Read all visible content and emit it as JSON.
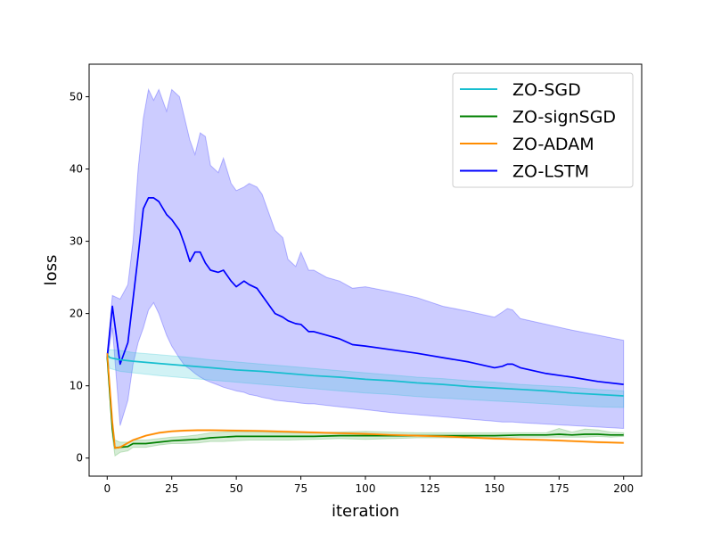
{
  "chart_data": {
    "type": "line",
    "title": "",
    "xlabel": "iteration",
    "ylabel": "loss",
    "xlim": [
      -7,
      207
    ],
    "ylim": [
      -2.5,
      54.5
    ],
    "xticks": [
      0,
      25,
      50,
      75,
      100,
      125,
      150,
      175,
      200
    ],
    "yticks": [
      0,
      10,
      20,
      30,
      40,
      50
    ],
    "grid": false,
    "legend": {
      "position": "top-right",
      "entries": [
        "ZO-SGD",
        "ZO-signSGD",
        "ZO-ADAM",
        "ZO-LSTM"
      ]
    },
    "series": [
      {
        "name": "ZO-SGD",
        "color": "#17becf",
        "band_color": "#17becf",
        "x": [
          0,
          1,
          5,
          10,
          20,
          30,
          40,
          50,
          60,
          70,
          80,
          90,
          100,
          110,
          120,
          130,
          140,
          150,
          160,
          170,
          180,
          190,
          200
        ],
        "values": [
          14.3,
          13.9,
          13.6,
          13.4,
          13.1,
          12.8,
          12.5,
          12.2,
          12.0,
          11.7,
          11.4,
          11.2,
          10.9,
          10.7,
          10.4,
          10.2,
          9.9,
          9.7,
          9.5,
          9.3,
          9.0,
          8.8,
          8.6
        ],
        "lower": [
          14.0,
          12.4,
          12.0,
          11.8,
          11.4,
          11.1,
          10.8,
          10.5,
          10.2,
          9.9,
          9.6,
          9.3,
          9.0,
          8.8,
          8.5,
          8.3,
          8.1,
          7.9,
          7.7,
          7.5,
          7.3,
          7.1,
          7.0
        ],
        "upper": [
          14.6,
          15.0,
          14.9,
          14.6,
          14.3,
          14.0,
          13.6,
          13.3,
          13.0,
          12.7,
          12.4,
          12.1,
          11.8,
          11.5,
          11.2,
          11.0,
          10.7,
          10.5,
          10.2,
          10.0,
          9.8,
          9.5,
          9.3
        ]
      },
      {
        "name": "ZO-signSGD",
        "color": "#008000",
        "band_color": "#2ca02c",
        "x": [
          0,
          2,
          3,
          5,
          8,
          10,
          15,
          20,
          25,
          30,
          35,
          40,
          45,
          50,
          55,
          60,
          70,
          80,
          90,
          100,
          110,
          120,
          130,
          140,
          150,
          160,
          170,
          175,
          180,
          185,
          190,
          195,
          200
        ],
        "values": [
          14.0,
          4.0,
          1.4,
          1.5,
          1.6,
          2.0,
          2.0,
          2.2,
          2.4,
          2.5,
          2.6,
          2.8,
          2.9,
          3.0,
          3.0,
          3.0,
          3.0,
          3.0,
          3.1,
          3.1,
          3.1,
          3.1,
          3.1,
          3.1,
          3.1,
          3.2,
          3.2,
          3.3,
          3.2,
          3.3,
          3.3,
          3.2,
          3.2
        ],
        "lower": [
          13.8,
          3.0,
          0.3,
          0.8,
          1.0,
          1.5,
          1.5,
          1.8,
          2.0,
          2.0,
          2.1,
          2.3,
          2.3,
          2.4,
          2.5,
          2.5,
          2.5,
          2.6,
          2.7,
          2.6,
          2.7,
          2.8,
          2.8,
          2.8,
          2.8,
          2.9,
          2.9,
          2.9,
          2.9,
          2.9,
          3.0,
          2.9,
          3.0
        ],
        "upper": [
          14.2,
          5.0,
          2.5,
          2.2,
          2.2,
          2.5,
          2.5,
          2.7,
          2.9,
          3.0,
          3.2,
          3.5,
          3.6,
          3.7,
          3.6,
          3.6,
          3.5,
          3.5,
          3.6,
          3.7,
          3.6,
          3.5,
          3.5,
          3.5,
          3.5,
          3.5,
          3.5,
          4.1,
          3.6,
          4.0,
          3.9,
          3.6,
          3.5
        ]
      },
      {
        "name": "ZO-ADAM",
        "color": "#ff8c00",
        "band_color": "#ff8c00",
        "x": [
          0,
          2,
          3,
          5,
          10,
          15,
          20,
          25,
          30,
          35,
          40,
          50,
          60,
          70,
          80,
          90,
          100,
          110,
          120,
          130,
          140,
          150,
          160,
          170,
          180,
          190,
          200
        ],
        "values": [
          14.5,
          5.0,
          1.4,
          1.5,
          2.5,
          3.1,
          3.5,
          3.7,
          3.8,
          3.85,
          3.85,
          3.8,
          3.75,
          3.65,
          3.55,
          3.45,
          3.35,
          3.2,
          3.1,
          3.0,
          2.85,
          2.7,
          2.6,
          2.5,
          2.35,
          2.2,
          2.1
        ],
        "lower": [
          14.5,
          5.0,
          1.3,
          1.4,
          2.4,
          3.0,
          3.4,
          3.6,
          3.7,
          3.75,
          3.75,
          3.7,
          3.65,
          3.55,
          3.45,
          3.35,
          3.25,
          3.1,
          3.0,
          2.9,
          2.75,
          2.6,
          2.5,
          2.4,
          2.25,
          2.1,
          2.0
        ],
        "upper": [
          14.5,
          5.0,
          1.5,
          1.6,
          2.6,
          3.2,
          3.6,
          3.8,
          3.9,
          3.95,
          3.95,
          3.9,
          3.85,
          3.75,
          3.65,
          3.55,
          3.45,
          3.3,
          3.2,
          3.1,
          2.95,
          2.8,
          2.7,
          2.6,
          2.45,
          2.3,
          2.2
        ]
      },
      {
        "name": "ZO-LSTM",
        "color": "#0000ff",
        "band_color": "#0000ff",
        "x": [
          0,
          2,
          5,
          8,
          10,
          12,
          14,
          16,
          18,
          20,
          23,
          25,
          28,
          30,
          32,
          34,
          36,
          38,
          40,
          43,
          45,
          48,
          50,
          53,
          55,
          58,
          60,
          63,
          65,
          68,
          70,
          73,
          75,
          78,
          80,
          85,
          90,
          95,
          100,
          110,
          120,
          130,
          140,
          150,
          153,
          155,
          157,
          160,
          170,
          180,
          190,
          200
        ],
        "values": [
          14.0,
          21.0,
          13.0,
          16.0,
          22.0,
          28.0,
          34.5,
          36.0,
          36.0,
          35.5,
          33.7,
          33.0,
          31.5,
          29.5,
          27.2,
          28.5,
          28.5,
          27.0,
          26.0,
          25.7,
          26.0,
          24.5,
          23.7,
          24.5,
          24.0,
          23.5,
          22.5,
          21.0,
          20.0,
          19.5,
          19.0,
          18.6,
          18.5,
          17.5,
          17.5,
          17.0,
          16.5,
          15.7,
          15.5,
          15.0,
          14.5,
          13.9,
          13.3,
          12.5,
          12.7,
          13.0,
          13.0,
          12.5,
          11.7,
          11.2,
          10.6,
          10.2
        ],
        "lower": [
          13.5,
          18.0,
          4.5,
          8.0,
          13.0,
          16.0,
          18.0,
          20.5,
          21.5,
          20.0,
          17.0,
          15.5,
          13.8,
          12.8,
          12.3,
          11.7,
          11.2,
          10.8,
          10.5,
          10.1,
          9.8,
          9.5,
          9.3,
          9.1,
          8.8,
          8.6,
          8.4,
          8.2,
          8.0,
          7.9,
          7.8,
          7.7,
          7.6,
          7.5,
          7.5,
          7.3,
          7.1,
          6.9,
          6.7,
          6.3,
          6.0,
          5.7,
          5.4,
          5.1,
          5.0,
          5.0,
          5.0,
          4.9,
          4.7,
          4.5,
          4.3,
          4.1
        ],
        "upper": [
          14.5,
          22.5,
          22.0,
          24.0,
          30.0,
          40.0,
          47.0,
          51.0,
          49.5,
          51.0,
          48.0,
          51.0,
          50.0,
          47.0,
          44.0,
          42.0,
          45.0,
          44.5,
          40.5,
          39.5,
          41.5,
          38.0,
          37.0,
          37.5,
          38.0,
          37.5,
          36.5,
          33.5,
          31.5,
          30.5,
          27.5,
          26.5,
          28.5,
          26.0,
          26.0,
          25.0,
          24.5,
          23.5,
          23.7,
          23.0,
          22.2,
          21.0,
          20.3,
          19.5,
          20.2,
          20.7,
          20.5,
          19.3,
          18.5,
          17.7,
          17.0,
          16.3
        ]
      }
    ]
  }
}
